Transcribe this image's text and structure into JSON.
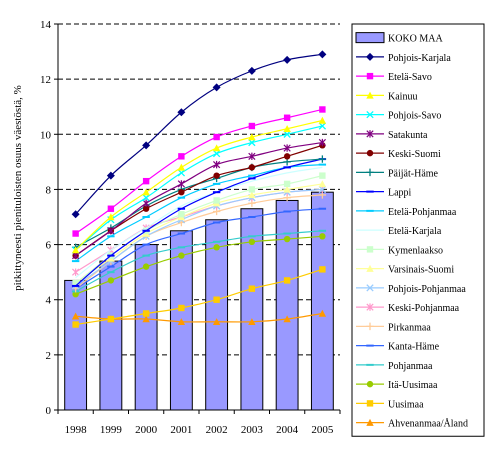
{
  "chart_data": {
    "type": "bar",
    "title": "",
    "xlabel": "",
    "ylabel": "pitkittyneesti pienituloisten osuus väestöstä, %",
    "ylim": [
      0,
      14
    ],
    "yticks": [
      0,
      2,
      4,
      6,
      8,
      10,
      12,
      14
    ],
    "grid": "dashed horizontal",
    "legend_position": "right",
    "categories": [
      "1998",
      "1999",
      "2000",
      "2001",
      "2002",
      "2003",
      "2004",
      "2005"
    ],
    "bar_series": {
      "name": "KOKO MAA",
      "color": "#9999ff",
      "values": [
        4.7,
        5.4,
        6.0,
        6.5,
        6.9,
        7.3,
        7.6,
        7.9
      ]
    },
    "line_series": [
      {
        "name": "Pohjois-Karjala",
        "color": "#000080",
        "marker": "diamond",
        "values": [
          7.1,
          8.5,
          9.6,
          10.8,
          11.7,
          12.3,
          12.7,
          12.9
        ]
      },
      {
        "name": "Etelä-Savo",
        "color": "#ff00ff",
        "marker": "square",
        "values": [
          6.4,
          7.3,
          8.3,
          9.2,
          9.9,
          10.3,
          10.6,
          10.9
        ]
      },
      {
        "name": "Kainuu",
        "color": "#ffff00",
        "marker": "triangle",
        "values": [
          5.8,
          7.0,
          7.9,
          8.8,
          9.5,
          9.9,
          10.2,
          10.5
        ]
      },
      {
        "name": "Pohjois-Savo",
        "color": "#00ffff",
        "marker": "x",
        "values": [
          5.8,
          6.9,
          7.7,
          8.6,
          9.3,
          9.7,
          10.0,
          10.3
        ]
      },
      {
        "name": "Satakunta",
        "color": "#800080",
        "marker": "star",
        "values": [
          5.6,
          6.5,
          7.5,
          8.2,
          8.9,
          9.2,
          9.5,
          9.7
        ]
      },
      {
        "name": "Keski-Suomi",
        "color": "#800000",
        "marker": "circle",
        "values": [
          5.6,
          6.5,
          7.3,
          7.9,
          8.5,
          8.8,
          9.2,
          9.6
        ]
      },
      {
        "name": "Päijät-Häme",
        "color": "#008080",
        "marker": "plus",
        "values": [
          5.9,
          6.6,
          7.4,
          8.0,
          8.4,
          8.8,
          9.0,
          9.1
        ]
      },
      {
        "name": "Lappi",
        "color": "#0000ff",
        "marker": "dash",
        "values": [
          4.5,
          5.6,
          6.5,
          7.3,
          7.9,
          8.4,
          8.8,
          9.1
        ]
      },
      {
        "name": "Etelä-Pohjanmaa",
        "color": "#00ccff",
        "marker": "dash",
        "values": [
          5.4,
          6.3,
          7.0,
          7.7,
          8.2,
          8.5,
          8.8,
          8.9
        ]
      },
      {
        "name": "Etelä-Karjala",
        "color": "#ccffff",
        "marker": "none",
        "values": [
          4.8,
          5.8,
          6.6,
          7.4,
          7.9,
          8.3,
          8.6,
          8.8
        ]
      },
      {
        "name": "Kymenlaakso",
        "color": "#ccffcc",
        "marker": "square",
        "values": [
          4.6,
          5.6,
          6.5,
          7.1,
          7.6,
          8.0,
          8.2,
          8.5
        ]
      },
      {
        "name": "Varsinais-Suomi",
        "color": "#ffff99",
        "marker": "triangle",
        "values": [
          4.6,
          5.5,
          6.4,
          7.0,
          7.5,
          7.8,
          8.0,
          8.2
        ]
      },
      {
        "name": "Pohjois-Pohjanmaa",
        "color": "#99ccff",
        "marker": "x",
        "values": [
          4.5,
          5.4,
          6.3,
          6.9,
          7.4,
          7.7,
          7.9,
          8.0
        ]
      },
      {
        "name": "Keski-Pohjanmaa",
        "color": "#ff99cc",
        "marker": "star",
        "values": [
          5.0,
          5.8,
          6.6,
          7.0,
          7.4,
          7.7,
          7.9,
          8.0
        ]
      },
      {
        "name": "Pirkanmaa",
        "color": "#ffcc99",
        "marker": "plus",
        "values": [
          4.4,
          5.4,
          6.3,
          6.8,
          7.2,
          7.5,
          7.7,
          7.8
        ]
      },
      {
        "name": "Kanta-Häme",
        "color": "#3366ff",
        "marker": "dash",
        "values": [
          4.4,
          5.2,
          6.0,
          6.4,
          6.8,
          7.0,
          7.2,
          7.3
        ]
      },
      {
        "name": "Pohjanmaa",
        "color": "#33cccc",
        "marker": "dash",
        "values": [
          4.3,
          5.0,
          5.6,
          5.9,
          6.1,
          6.3,
          6.4,
          6.5
        ]
      },
      {
        "name": "Itä-Uusimaa",
        "color": "#99cc00",
        "marker": "circle",
        "values": [
          4.2,
          4.7,
          5.2,
          5.6,
          5.9,
          6.1,
          6.2,
          6.3
        ]
      },
      {
        "name": "Uusimaa",
        "color": "#ffcc00",
        "marker": "square",
        "values": [
          3.1,
          3.3,
          3.5,
          3.7,
          4.0,
          4.4,
          4.7,
          5.1
        ]
      },
      {
        "name": "Ahvenanmaa/Åland",
        "color": "#ff9900",
        "marker": "triangle",
        "values": [
          3.4,
          3.3,
          3.3,
          3.2,
          3.2,
          3.2,
          3.3,
          3.5
        ]
      }
    ]
  }
}
